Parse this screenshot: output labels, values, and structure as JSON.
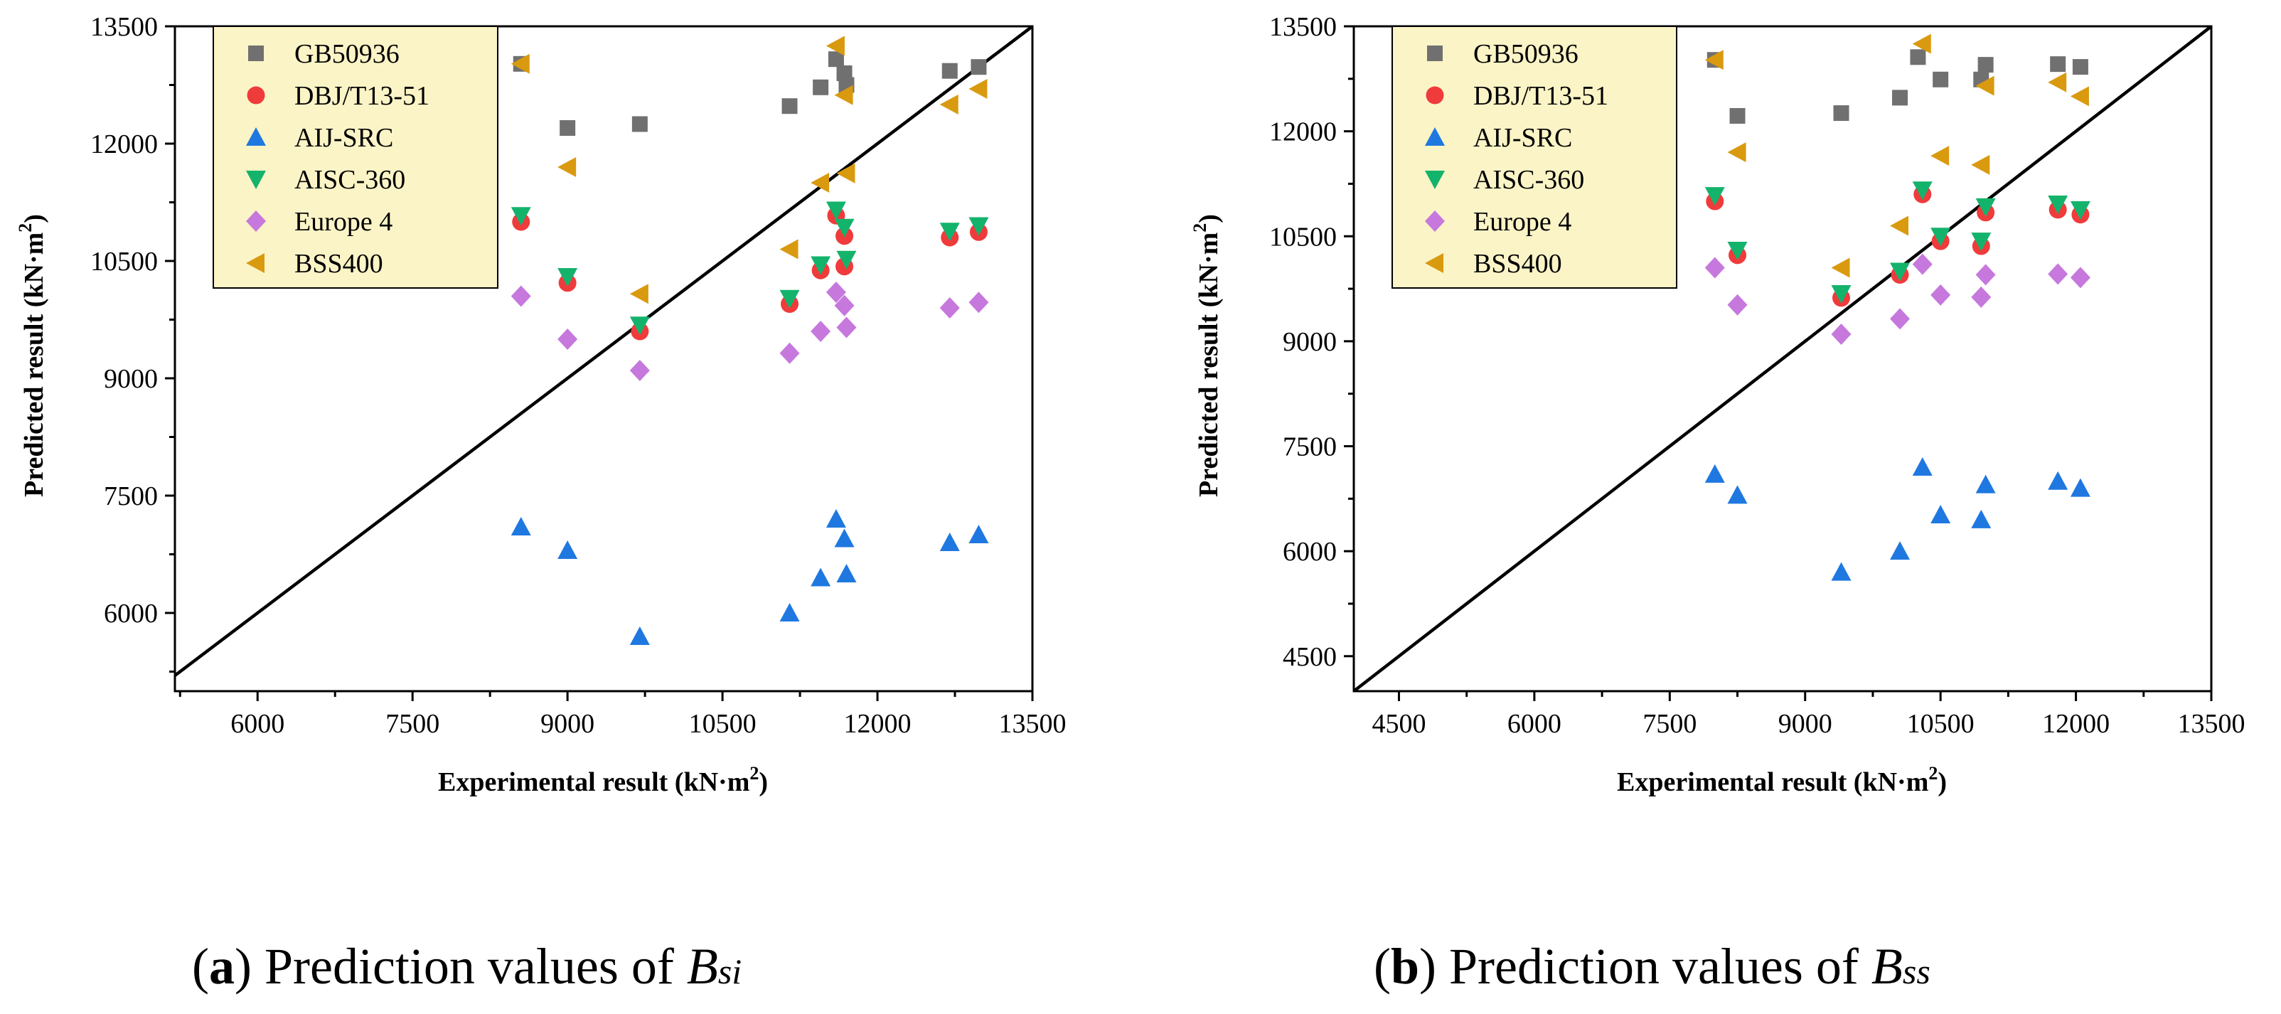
{
  "chart_data": [
    {
      "type": "scatter",
      "id": "a",
      "xlabel": "Experimental result (kN·m",
      "ylabel": "Predicted result (kN·m",
      "unit_sup": "2",
      "xlim": [
        5200,
        13500
      ],
      "ylim": [
        5000,
        13500
      ],
      "xticks": [
        6000,
        7500,
        9000,
        10500,
        12000,
        13500
      ],
      "yticks": [
        6000,
        7500,
        9000,
        10500,
        12000,
        13500
      ],
      "reference_line": "y = x",
      "legend_position": "top-left",
      "series": [
        {
          "name": "GB50936",
          "marker": "square",
          "color": "#707070",
          "points": [
            [
              8550,
              13020
            ],
            [
              9000,
              12200
            ],
            [
              9700,
              12250
            ],
            [
              11150,
              12480
            ],
            [
              11450,
              12720
            ],
            [
              11600,
              13080
            ],
            [
              11680,
              12900
            ],
            [
              11700,
              12750
            ],
            [
              12700,
              12930
            ],
            [
              12980,
              12980
            ]
          ]
        },
        {
          "name": "DBJ/T13-51",
          "marker": "circle",
          "color": "#ef3b3b",
          "points": [
            [
              8550,
              11000
            ],
            [
              9000,
              10220
            ],
            [
              9700,
              9600
            ],
            [
              11150,
              9950
            ],
            [
              11450,
              10380
            ],
            [
              11600,
              11080
            ],
            [
              11680,
              10820
            ],
            [
              11680,
              10430
            ],
            [
              12700,
              10800
            ],
            [
              12980,
              10870
            ]
          ]
        },
        {
          "name": "AIJ-SRC",
          "marker": "triangle-up",
          "color": "#1f78e0",
          "points": [
            [
              8550,
              7100
            ],
            [
              9000,
              6800
            ],
            [
              9700,
              5700
            ],
            [
              11150,
              6000
            ],
            [
              11450,
              6450
            ],
            [
              11600,
              7200
            ],
            [
              11680,
              6950
            ],
            [
              11700,
              6500
            ],
            [
              12700,
              6900
            ],
            [
              12980,
              7000
            ]
          ]
        },
        {
          "name": "AISC-360",
          "marker": "triangle-down",
          "color": "#14b36b",
          "points": [
            [
              8550,
              11080
            ],
            [
              9000,
              10300
            ],
            [
              9700,
              9680
            ],
            [
              11150,
              10020
            ],
            [
              11450,
              10450
            ],
            [
              11600,
              11150
            ],
            [
              11680,
              10930
            ],
            [
              11700,
              10520
            ],
            [
              12700,
              10880
            ],
            [
              12980,
              10950
            ]
          ]
        },
        {
          "name": "Europe 4",
          "marker": "diamond",
          "color": "#c678dd",
          "points": [
            [
              8550,
              10050
            ],
            [
              9000,
              9500
            ],
            [
              9700,
              9100
            ],
            [
              11150,
              9320
            ],
            [
              11450,
              9600
            ],
            [
              11600,
              10100
            ],
            [
              11680,
              9930
            ],
            [
              11700,
              9650
            ],
            [
              12700,
              9900
            ],
            [
              12980,
              9970
            ]
          ]
        },
        {
          "name": "BSS400",
          "marker": "triangle-left",
          "color": "#d99a0f",
          "points": [
            [
              8550,
              13020
            ],
            [
              9000,
              11700
            ],
            [
              9700,
              10080
            ],
            [
              11150,
              10650
            ],
            [
              11450,
              11500
            ],
            [
              11600,
              13250
            ],
            [
              11680,
              12620
            ],
            [
              11700,
              11620
            ],
            [
              12700,
              12500
            ],
            [
              12980,
              12700
            ]
          ]
        }
      ]
    },
    {
      "type": "scatter",
      "id": "b",
      "xlabel": "Experimental result (kN·m",
      "ylabel": "Predicted result (kN·m",
      "unit_sup": "2",
      "xlim": [
        4000,
        13500
      ],
      "ylim": [
        4000,
        13500
      ],
      "xticks": [
        4500,
        6000,
        7500,
        9000,
        10500,
        12000,
        13500
      ],
      "yticks": [
        4500,
        6000,
        7500,
        9000,
        10500,
        12000,
        13500
      ],
      "reference_line": "y = x",
      "legend_position": "top-left",
      "series": [
        {
          "name": "GB50936",
          "marker": "square",
          "color": "#707070",
          "points": [
            [
              8000,
              13020
            ],
            [
              8250,
              12220
            ],
            [
              9400,
              12260
            ],
            [
              10050,
              12480
            ],
            [
              10250,
              13060
            ],
            [
              10500,
              12740
            ],
            [
              10950,
              12740
            ],
            [
              11000,
              12950
            ],
            [
              11800,
              12960
            ],
            [
              12050,
              12920
            ]
          ]
        },
        {
          "name": "DBJ/T13-51",
          "marker": "circle",
          "color": "#ef3b3b",
          "points": [
            [
              8000,
              11000
            ],
            [
              8250,
              10230
            ],
            [
              9400,
              9620
            ],
            [
              10050,
              9950
            ],
            [
              10300,
              11100
            ],
            [
              10500,
              10430
            ],
            [
              10950,
              10360
            ],
            [
              11000,
              10840
            ],
            [
              11800,
              10880
            ],
            [
              12050,
              10810
            ]
          ]
        },
        {
          "name": "AIJ-SRC",
          "marker": "triangle-up",
          "color": "#1f78e0",
          "points": [
            [
              8000,
              7100
            ],
            [
              8250,
              6800
            ],
            [
              9400,
              5700
            ],
            [
              10050,
              6000
            ],
            [
              10300,
              7200
            ],
            [
              10500,
              6520
            ],
            [
              10950,
              6450
            ],
            [
              11000,
              6950
            ],
            [
              11800,
              7000
            ],
            [
              12050,
              6900
            ]
          ]
        },
        {
          "name": "AISC-360",
          "marker": "triangle-down",
          "color": "#14b36b",
          "points": [
            [
              8000,
              11080
            ],
            [
              8250,
              10300
            ],
            [
              9400,
              9680
            ],
            [
              10050,
              10000
            ],
            [
              10300,
              11160
            ],
            [
              10500,
              10500
            ],
            [
              10950,
              10430
            ],
            [
              11000,
              10920
            ],
            [
              11800,
              10960
            ],
            [
              12050,
              10880
            ]
          ]
        },
        {
          "name": "Europe 4",
          "marker": "diamond",
          "color": "#c678dd",
          "points": [
            [
              8000,
              10050
            ],
            [
              8250,
              9520
            ],
            [
              9400,
              9100
            ],
            [
              10050,
              9320
            ],
            [
              10300,
              10100
            ],
            [
              10500,
              9660
            ],
            [
              10950,
              9630
            ],
            [
              11000,
              9950
            ],
            [
              11800,
              9960
            ],
            [
              12050,
              9910
            ]
          ]
        },
        {
          "name": "BSS400",
          "marker": "triangle-left",
          "color": "#d99a0f",
          "points": [
            [
              8000,
              13020
            ],
            [
              8250,
              11700
            ],
            [
              9400,
              10050
            ],
            [
              10050,
              10650
            ],
            [
              10300,
              13250
            ],
            [
              10500,
              11650
            ],
            [
              10950,
              11520
            ],
            [
              11000,
              12650
            ],
            [
              11800,
              12700
            ],
            [
              12050,
              12500
            ]
          ]
        }
      ]
    }
  ],
  "captions": [
    {
      "tag": "a",
      "text": "Prediction values of ",
      "sym": "B",
      "sub": "si"
    },
    {
      "tag": "b",
      "text": "Prediction values of ",
      "sym": "B",
      "sub": "ss"
    }
  ]
}
